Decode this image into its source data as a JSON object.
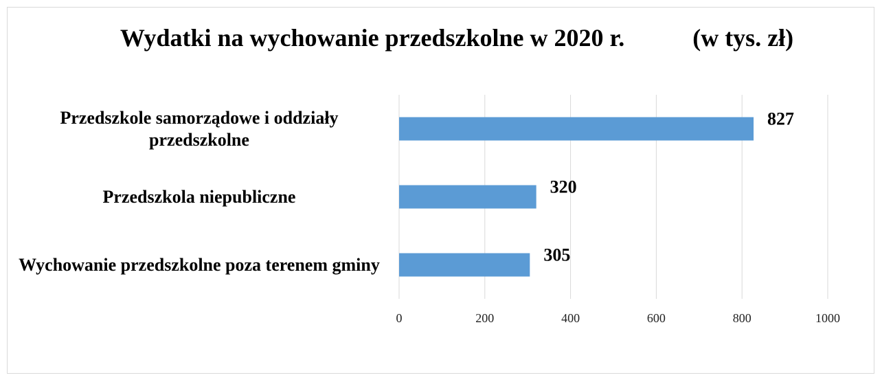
{
  "chart_data": {
    "type": "bar",
    "orientation": "horizontal",
    "title": "Wydatki na wychowanie przedszkolne w 2020 r.           (w tys. zł)",
    "categories": [
      "Przedszkole samorządowe i oddziały przedszkolne",
      "Przedszkola niepubliczne",
      "Wychowanie przedszkolne poza terenem gminy"
    ],
    "values": [
      827,
      320,
      305
    ],
    "color": "#5b9bd5",
    "xlim": [
      0,
      1000
    ],
    "xticks": [
      0,
      200,
      400,
      600,
      800,
      1000
    ],
    "grid": true
  }
}
